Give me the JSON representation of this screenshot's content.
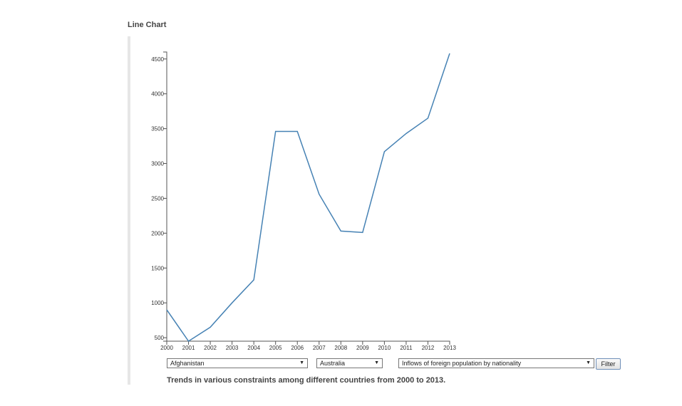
{
  "page": {
    "title": "Line Chart",
    "caption": "Trends in various constraints among different countries from 2000 to 2013."
  },
  "controls": {
    "country1": "Afghanistan",
    "country2": "Australia",
    "indicator": "Inflows of foreign population by nationality",
    "filter_label": "Filter",
    "chevron": "▼"
  },
  "colors": {
    "line": "#4682b4"
  },
  "chart_data": {
    "type": "line",
    "x": [
      2000,
      2001,
      2002,
      2003,
      2004,
      2005,
      2006,
      2007,
      2008,
      2009,
      2010,
      2011,
      2012,
      2013
    ],
    "series": [
      {
        "values": [
          900,
          450,
          650,
          1000,
          1330,
          3460,
          3460,
          2560,
          2030,
          2010,
          3170,
          3430,
          3650,
          4580
        ]
      }
    ],
    "xlim": [
      2000,
      2013
    ],
    "ylim": [
      450,
      4600
    ],
    "yticks": [
      500,
      1000,
      1500,
      2000,
      2500,
      3000,
      3500,
      4000,
      4500
    ],
    "grid": false
  }
}
